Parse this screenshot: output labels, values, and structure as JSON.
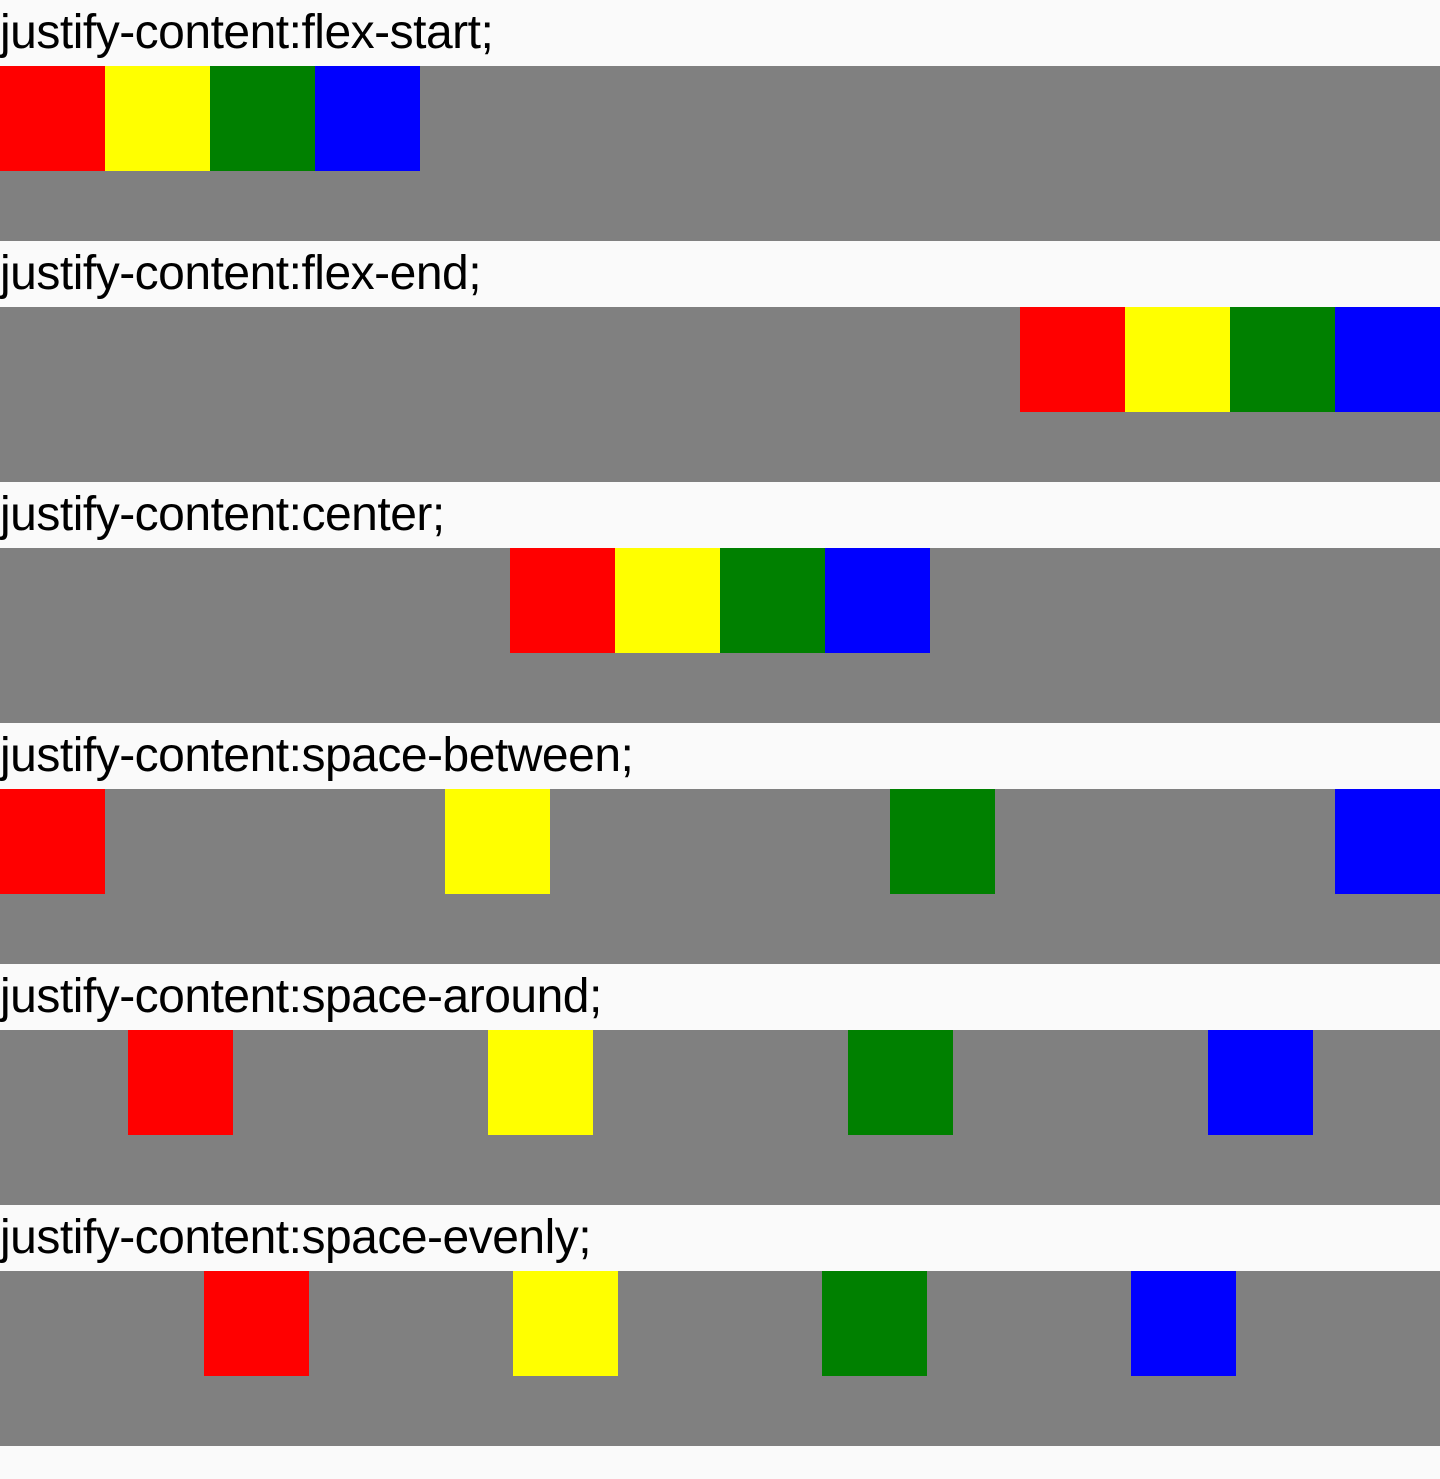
{
  "colors": {
    "page_background": "#fafafa",
    "container_background": "#808080",
    "box_1": "#ff0000",
    "box_2": "#ffff00",
    "box_3": "#008000",
    "box_4": "#0000ff"
  },
  "demos": [
    {
      "label": "justify-content:flex-start;",
      "mode": "flex-start"
    },
    {
      "label": "justify-content:flex-end;",
      "mode": "flex-end"
    },
    {
      "label": "justify-content:center;",
      "mode": "center"
    },
    {
      "label": "justify-content:space-between;",
      "mode": "space-between"
    },
    {
      "label": "justify-content:space-around;",
      "mode": "space-around"
    },
    {
      "label": "justify-content:space-evenly;",
      "mode": "space-evenly"
    }
  ]
}
